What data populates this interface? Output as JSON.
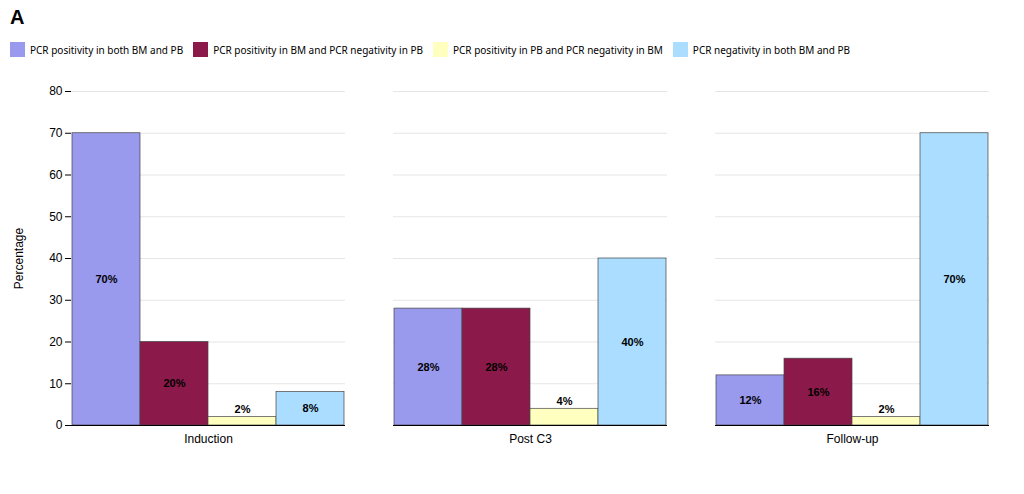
{
  "chart_data": {
    "type": "bar",
    "title": "A",
    "categories": [
      "Induction",
      "Post C3",
      "Follow-up"
    ],
    "series": [
      {
        "name": "PCR positivity in both BM and PB",
        "color": "#9999EE",
        "values": [
          70,
          28,
          12
        ],
        "value_labels": [
          "70%",
          "28%",
          "12%"
        ]
      },
      {
        "name": "PCR positivity in BM and PCR negativity in PB",
        "color": "#8B1A4A",
        "values": [
          20,
          28,
          16
        ],
        "value_labels": [
          "20%",
          "28%",
          "16%"
        ]
      },
      {
        "name": "PCR positivity in PB and PCR negativity in BM",
        "color": "#FFFFC0",
        "values": [
          2,
          4,
          2
        ],
        "value_labels": [
          "2%",
          "4%",
          "2%"
        ]
      },
      {
        "name": "PCR negativity in both BM and PB",
        "color": "#AADDFF",
        "values": [
          8,
          40,
          70
        ],
        "value_labels": [
          "8%",
          "40%",
          "70%"
        ]
      }
    ],
    "ylabel": "Percentage",
    "ylim": [
      0,
      80
    ],
    "yticks": [
      0,
      10,
      20,
      30,
      40,
      50,
      60,
      70,
      80
    ],
    "grid": true,
    "legend": "upper left",
    "data_labels": true
  }
}
